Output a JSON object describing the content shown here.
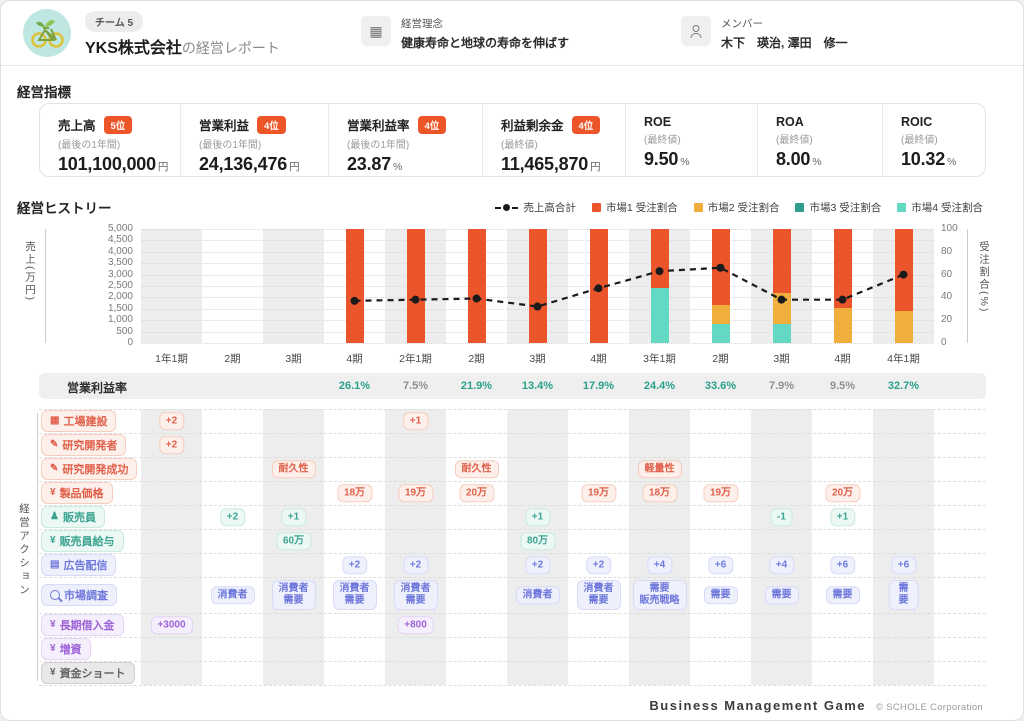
{
  "header": {
    "team_badge": "チーム 5",
    "company": "YKS株式会社",
    "title_suffix": "の経営レポート",
    "philosophy_label": "経営理念",
    "philosophy_value": "健康寿命と地球の寿命を伸ばす",
    "members_label": "メンバー",
    "members_value": "木下　瑛治, 澤田　修一"
  },
  "kpi": {
    "section_title": "経営指標",
    "cards": [
      {
        "title": "売上高",
        "rank": "5位",
        "period": "(最後の1年間)",
        "value": "101,100,000",
        "unit": "円"
      },
      {
        "title": "営業利益",
        "rank": "4位",
        "period": "(最後の1年間)",
        "value": "24,136,476",
        "unit": "円"
      },
      {
        "title": "営業利益率",
        "rank": "4位",
        "period": "(最後の1年間)",
        "value": "23.87",
        "unit": "%"
      },
      {
        "title": "利益剰余金",
        "rank": "4位",
        "period": "(最終値)",
        "value": "11,465,870",
        "unit": "円"
      },
      {
        "title": "ROE",
        "rank": null,
        "period": "(最終値)",
        "value": "9.50",
        "unit": "%"
      },
      {
        "title": "ROA",
        "rank": null,
        "period": "(最終値)",
        "value": "8.00",
        "unit": "%"
      },
      {
        "title": "ROIC",
        "rank": null,
        "period": "(最終値)",
        "value": "10.32",
        "unit": "%"
      }
    ]
  },
  "history": {
    "section_title": "経営ヒストリー"
  },
  "chart_data": {
    "type": "bar+line",
    "categories": [
      "1年1期",
      "2期",
      "3期",
      "4期",
      "2年1期",
      "2期",
      "3期",
      "4期",
      "3年1期",
      "2期",
      "3期",
      "4期",
      "4年1期"
    ],
    "left_axis": {
      "label": "売上(万円)",
      "min": 0,
      "max": 5000,
      "step": 500
    },
    "right_axis": {
      "label": "受注割合(%)",
      "min": 0,
      "max": 100,
      "step": 20
    },
    "grid": true,
    "legend_position": "top-right",
    "line": {
      "name": "売上高合計",
      "color": "#1b1b1b",
      "values": [
        null,
        null,
        null,
        1850,
        1900,
        1950,
        1600,
        2400,
        3150,
        3300,
        1900,
        1900,
        3000
      ]
    },
    "series": [
      {
        "name": "市場1 受注割合",
        "color": "#EB552B",
        "values": [
          0,
          0,
          0,
          100,
          100,
          100,
          100,
          100,
          52,
          67,
          56,
          69,
          72
        ]
      },
      {
        "name": "市場2 受注割合",
        "color": "#F0AF3C",
        "values": [
          0,
          0,
          0,
          0,
          0,
          0,
          0,
          0,
          0,
          16,
          27,
          31,
          28
        ]
      },
      {
        "name": "市場3 受注割合",
        "color": "#2E9D8E",
        "values": [
          0,
          0,
          0,
          0,
          0,
          0,
          0,
          0,
          0,
          0,
          0,
          0,
          0
        ]
      },
      {
        "name": "市場4 受注割合",
        "color": "#63D9C4",
        "values": [
          0,
          0,
          0,
          0,
          0,
          0,
          0,
          0,
          48,
          17,
          17,
          0,
          0
        ]
      }
    ]
  },
  "profit_row": {
    "label": "営業利益率",
    "cells": [
      {
        "text": "",
        "tone": ""
      },
      {
        "text": "",
        "tone": ""
      },
      {
        "text": "",
        "tone": ""
      },
      {
        "text": "26.1%",
        "tone": "good"
      },
      {
        "text": "7.5%",
        "tone": "muted"
      },
      {
        "text": "21.9%",
        "tone": "good"
      },
      {
        "text": "13.4%",
        "tone": "good"
      },
      {
        "text": "17.9%",
        "tone": "good"
      },
      {
        "text": "24.4%",
        "tone": "good"
      },
      {
        "text": "33.6%",
        "tone": "good"
      },
      {
        "text": "7.9%",
        "tone": "muted"
      },
      {
        "text": "9.5%",
        "tone": "muted"
      },
      {
        "text": "32.7%",
        "tone": "good"
      }
    ]
  },
  "actions": {
    "section_label": "経営アクション",
    "rows": [
      {
        "label": "工場建設",
        "icon": "factory-icon",
        "glyph": "▦",
        "color": "red",
        "cells": {
          "1": "+2",
          "5": "+1"
        }
      },
      {
        "label": "研究開発者",
        "icon": "research-staff-icon",
        "glyph": "✎",
        "color": "red",
        "cells": {
          "1": "+2"
        }
      },
      {
        "label": "研究開発成功",
        "icon": "research-success-icon",
        "glyph": "✎",
        "color": "red",
        "cells": {
          "3": "耐久性",
          "6": "耐久性",
          "9": "軽量性"
        }
      },
      {
        "label": "製品価格",
        "icon": "price-icon",
        "glyph": "¥",
        "color": "red",
        "cells": {
          "4": "18万",
          "5": "19万",
          "6": "20万",
          "8": "19万",
          "9": "18万",
          "10": "19万",
          "12": "20万"
        }
      },
      {
        "label": "販売員",
        "icon": "salesperson-icon",
        "glyph": "♟",
        "color": "teal",
        "cells": {
          "2": "+2",
          "3": "+1",
          "7": "+1",
          "11": "-1",
          "12": "+1"
        }
      },
      {
        "label": "販売員給与",
        "icon": "salary-icon",
        "glyph": "¥",
        "color": "teal",
        "cells": {
          "3": "60万",
          "7": "80万"
        }
      },
      {
        "label": "広告配信",
        "icon": "ads-icon",
        "glyph": "▤",
        "color": "indigo",
        "cells": {
          "4": "+2",
          "5": "+2",
          "7": "+2",
          "8": "+2",
          "9": "+4",
          "10": "+6",
          "11": "+4",
          "12": "+6",
          "13": "+6"
        }
      },
      {
        "label": "市場調査",
        "icon": "search-icon",
        "glyph": "",
        "color": "indigo",
        "cells": {
          "2": "消費者",
          "3": "消費者\n需要",
          "4": "消費者\n需要",
          "5": "消費者\n需要",
          "7": "消費者",
          "8": "消費者\n需要",
          "9": "需要\n販売戦略",
          "10": "需要",
          "11": "需要",
          "12": "需要",
          "13": "需要"
        }
      },
      {
        "label": "長期借入金",
        "icon": "loan-icon",
        "glyph": "¥",
        "color": "purple",
        "cells": {
          "1": "+3000",
          "5": "+800"
        }
      },
      {
        "label": "増資",
        "icon": "capital-increase-icon",
        "glyph": "¥",
        "color": "purple",
        "cells": {}
      },
      {
        "label": "資金ショート",
        "icon": "cash-short-icon",
        "glyph": "¥",
        "color": "gray",
        "cells": {}
      }
    ]
  },
  "footer": {
    "title": "Business Management Game",
    "copyright": "© SCHOLE Corporation"
  },
  "colors": {
    "accent": "#EB5528",
    "good": "#2AA08A",
    "muted": "#909090",
    "stripe": "#EDEDED",
    "logo_bg": "#BFE7E2"
  }
}
